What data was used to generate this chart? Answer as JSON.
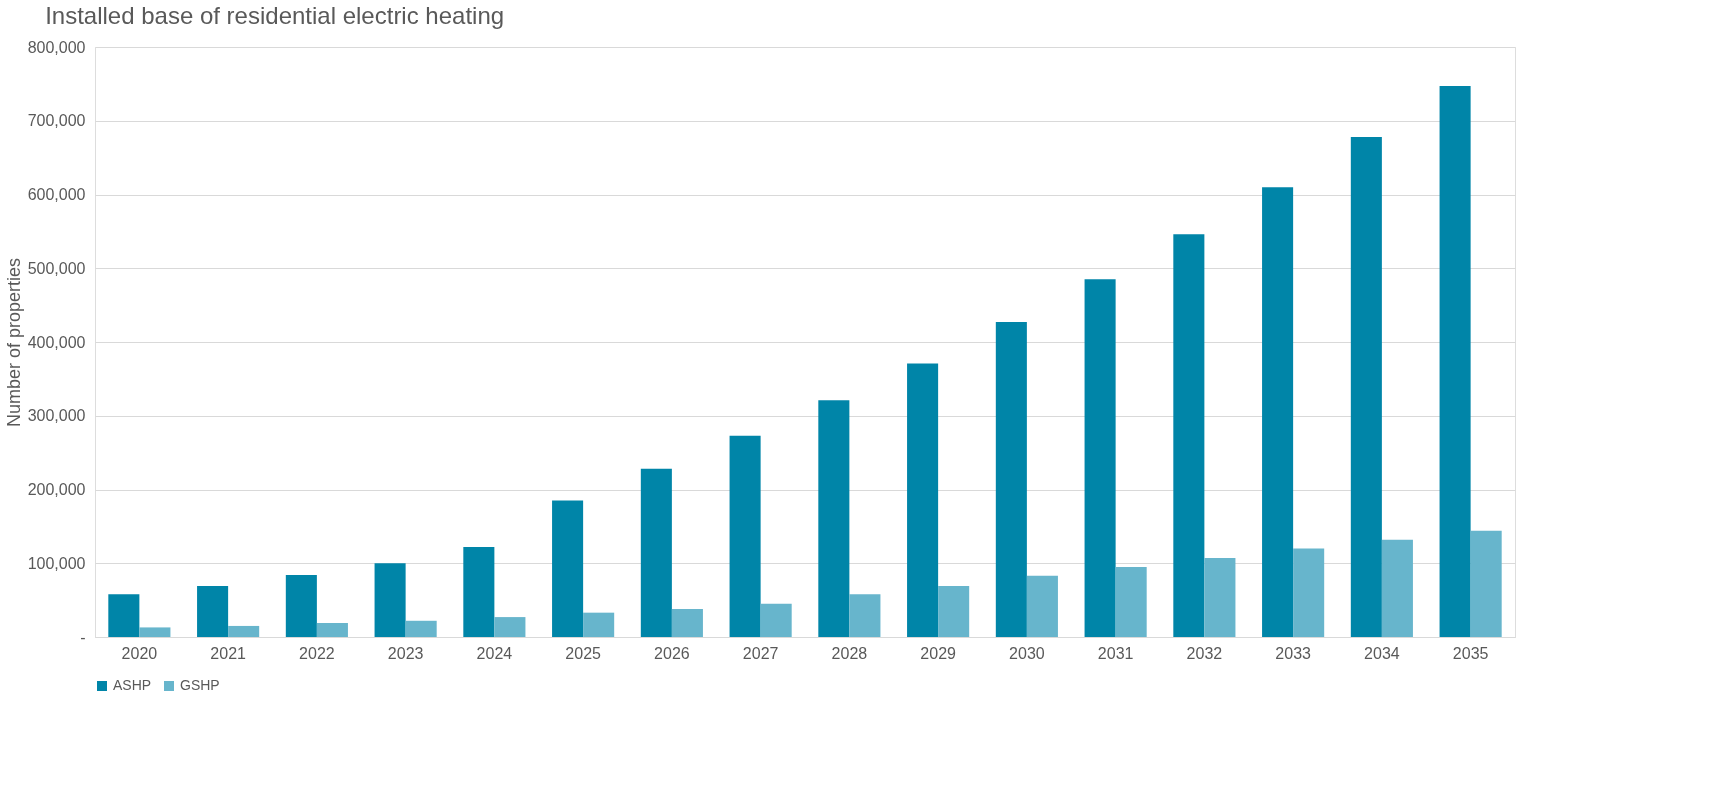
{
  "chart_data": {
    "type": "bar",
    "title": "Installed base of residential electric heating",
    "ylabel": "Number of properties",
    "categories": [
      "2020",
      "2021",
      "2022",
      "2023",
      "2024",
      "2025",
      "2026",
      "2027",
      "2028",
      "2029",
      "2030",
      "2031",
      "2032",
      "2033",
      "2034",
      "2035"
    ],
    "series": [
      {
        "name": "ASHP",
        "color": "#0085a8",
        "values": [
          58000,
          69000,
          84000,
          100000,
          122000,
          185000,
          228000,
          273000,
          321000,
          371000,
          427000,
          485000,
          546000,
          610000,
          678000,
          747000
        ]
      },
      {
        "name": "GSHP",
        "color": "#67b5cc",
        "values": [
          13000,
          15000,
          19000,
          22000,
          27000,
          33000,
          38000,
          45000,
          58000,
          69000,
          83000,
          95000,
          107000,
          120000,
          132000,
          144000
        ]
      }
    ],
    "ylim": [
      0,
      800000
    ],
    "yticks": [
      {
        "value": 0,
        "label": "-"
      },
      {
        "value": 100000,
        "label": "100,000"
      },
      {
        "value": 200000,
        "label": "200,000"
      },
      {
        "value": 300000,
        "label": "300,000"
      },
      {
        "value": 400000,
        "label": "400,000"
      },
      {
        "value": 500000,
        "label": "500,000"
      },
      {
        "value": 600000,
        "label": "600,000"
      },
      {
        "value": 700000,
        "label": "700,000"
      },
      {
        "value": 800000,
        "label": "800,000"
      }
    ],
    "grid": "y",
    "legend": "bottom"
  }
}
